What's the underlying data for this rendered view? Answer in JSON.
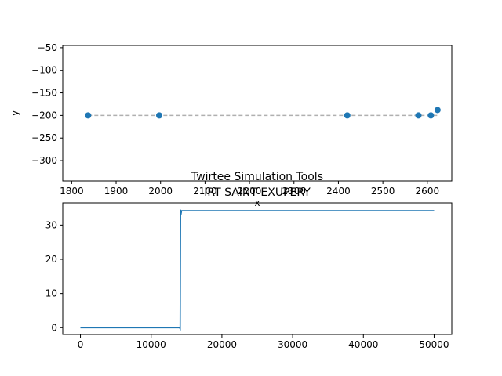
{
  "chart_data": [
    {
      "type": "scatter",
      "title": "",
      "xlabel": "x",
      "ylabel": "y",
      "xlim": [
        1780,
        2655
      ],
      "ylim": [
        -345,
        -45
      ],
      "xticks": [
        1800,
        1900,
        2000,
        2100,
        2200,
        2300,
        2400,
        2500,
        2600
      ],
      "yticks": [
        -50,
        -100,
        -150,
        -200,
        -250,
        -300
      ],
      "grid": false,
      "reference_line": {
        "y": -200,
        "style": "dashed",
        "color": "#b0b0b0"
      },
      "series": [
        {
          "color": "#1f77b4",
          "points": [
            {
              "x": 1837,
              "y": -200
            },
            {
              "x": 1997,
              "y": -200
            },
            {
              "x": 2420,
              "y": -200
            },
            {
              "x": 2580,
              "y": -200
            },
            {
              "x": 2608,
              "y": -200
            },
            {
              "x": 2623,
              "y": -188
            }
          ]
        }
      ]
    },
    {
      "type": "line",
      "title": "Twirtee Simulation Tools",
      "subtitle": "IRT SAINT EXUPERY",
      "xlabel": "",
      "ylabel": "",
      "xlim": [
        -2500,
        52500
      ],
      "ylim": [
        -2,
        36.5
      ],
      "xticks": [
        0,
        10000,
        20000,
        30000,
        40000,
        50000
      ],
      "yticks": [
        0,
        10,
        20,
        30
      ],
      "grid": false,
      "series": [
        {
          "color": "#1f77b4",
          "points": [
            {
              "x": 0,
              "y": 0
            },
            {
              "x": 14000,
              "y": 0
            },
            {
              "x": 14100,
              "y": -0.3
            },
            {
              "x": 14150,
              "y": 34.5
            },
            {
              "x": 14200,
              "y": 33
            },
            {
              "x": 14300,
              "y": 34.2
            },
            {
              "x": 50000,
              "y": 34.2
            }
          ]
        }
      ]
    }
  ]
}
